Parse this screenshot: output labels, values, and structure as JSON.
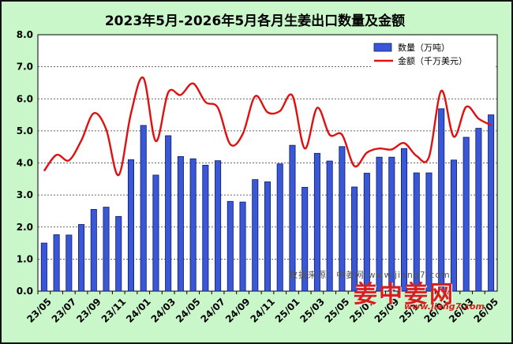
{
  "chart_data": {
    "type": "bar",
    "title": "2023年5月-2026年5月各月生姜出口数量及金额",
    "ylim": [
      0,
      8
    ],
    "yticks": [
      "0.0",
      "1.0",
      "2.0",
      "3.0",
      "4.0",
      "5.0",
      "6.0",
      "7.0",
      "8.0"
    ],
    "grid": true,
    "legend_position": "top-right",
    "categories": [
      "23/05",
      "23/06",
      "23/07",
      "23/08",
      "23/09",
      "23/10",
      "23/11",
      "23/12",
      "24/01",
      "24/02",
      "24/03",
      "24/04",
      "24/05",
      "24/06",
      "24/07",
      "24/08",
      "24/09",
      "24/10",
      "24/11",
      "24/12",
      "25/01",
      "25/02",
      "25/03",
      "25/04",
      "25/05",
      "25/06",
      "25/07",
      "25/08",
      "25/09",
      "25/10",
      "25/11",
      "25/12",
      "26/01",
      "26/02",
      "26/03",
      "26/04",
      "26/05"
    ],
    "xtick_labels": [
      "23/05",
      "23/07",
      "23/09",
      "23/11",
      "24/01",
      "24/03",
      "24/05",
      "24/07",
      "24/09",
      "24/11",
      "25/01",
      "25/03",
      "25/05",
      "25/07",
      "25/09",
      "25/11",
      "26/01",
      "26/03",
      "26/05"
    ],
    "series": [
      {
        "name": "数量（万吨）",
        "type": "bar",
        "color": "#3a57d6",
        "values": [
          1.5,
          1.76,
          1.75,
          2.08,
          2.55,
          2.62,
          2.33,
          4.1,
          5.17,
          3.62,
          4.85,
          4.2,
          4.13,
          3.93,
          4.07,
          2.8,
          2.78,
          3.48,
          3.41,
          3.97,
          4.55,
          3.24,
          4.3,
          4.06,
          4.51,
          3.25,
          3.68,
          4.18,
          4.18,
          4.45,
          3.69,
          3.69,
          5.69,
          4.09,
          4.8,
          5.08,
          5.5
        ]
      },
      {
        "name": "金额（千万美元）",
        "type": "line",
        "color": "#e01010",
        "values": [
          3.75,
          4.25,
          4.08,
          4.7,
          5.55,
          5.05,
          3.62,
          5.55,
          6.65,
          4.68,
          6.2,
          6.12,
          6.48,
          5.9,
          5.72,
          4.58,
          4.9,
          6.08,
          5.58,
          5.62,
          6.1,
          4.45,
          5.72,
          4.88,
          4.88,
          3.9,
          4.32,
          4.45,
          4.42,
          4.62,
          4.22,
          4.18,
          6.25,
          4.82,
          5.75,
          5.38,
          5.18
        ]
      }
    ]
  },
  "watermark": {
    "source_text": "数据来源：中姜网 www.jiang7.com"
  },
  "logo": {
    "main_text": "姜中姜网",
    "url_text": "www.jiang7.com"
  },
  "colors": {
    "background": "#c9f7c9",
    "bar": "#3a57d6",
    "line": "#e01010"
  }
}
